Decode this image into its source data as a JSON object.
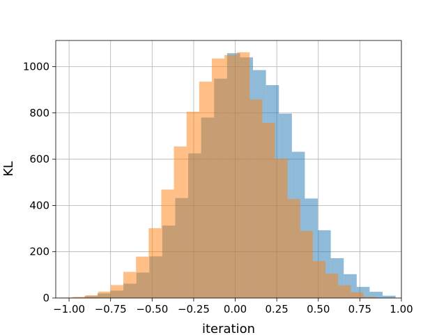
{
  "chart_data": {
    "type": "bar",
    "histogram": true,
    "xlabel": "iteration",
    "ylabel": "KL",
    "xlim": [
      -1.08,
      1.0
    ],
    "ylim": [
      0,
      1113
    ],
    "x_ticks": [
      -1.0,
      -0.75,
      -0.5,
      -0.25,
      0.0,
      0.25,
      0.5,
      0.75,
      1.0
    ],
    "x_tick_labels": [
      "−1.00",
      "−0.75",
      "−0.50",
      "−0.25",
      "0.00",
      "0.25",
      "0.50",
      "0.75",
      "1.00"
    ],
    "y_ticks": [
      0,
      200,
      400,
      600,
      800,
      1000
    ],
    "y_tick_labels": [
      "0",
      "200",
      "400",
      "600",
      "800",
      "1000"
    ],
    "grid": true,
    "series": [
      {
        "color": "#1f77b4",
        "opacity": 0.5,
        "bin_edges": [
          -0.985,
          -0.907,
          -0.829,
          -0.751,
          -0.673,
          -0.595,
          -0.517,
          -0.439,
          -0.361,
          -0.283,
          -0.205,
          -0.127,
          -0.049,
          0.029,
          0.107,
          0.185,
          0.263,
          0.341,
          0.419,
          0.497,
          0.575,
          0.653,
          0.731,
          0.809,
          0.887,
          0.965
        ],
        "counts": [
          2,
          8,
          20,
          32,
          62,
          110,
          180,
          313,
          432,
          625,
          780,
          948,
          1058,
          1040,
          985,
          920,
          797,
          632,
          430,
          293,
          172,
          103,
          48,
          27,
          10
        ]
      },
      {
        "color": "#ff7f0e",
        "opacity": 0.5,
        "bin_edges": [
          -1.053,
          -0.977,
          -0.901,
          -0.825,
          -0.749,
          -0.673,
          -0.597,
          -0.521,
          -0.445,
          -0.369,
          -0.293,
          -0.217,
          -0.141,
          -0.065,
          0.011,
          0.087,
          0.163,
          0.239,
          0.315,
          0.391,
          0.467,
          0.543,
          0.619,
          0.695,
          0.771,
          0.847
        ],
        "counts": [
          2,
          5,
          12,
          28,
          56,
          113,
          179,
          302,
          469,
          655,
          805,
          935,
          1035,
          1050,
          1062,
          858,
          757,
          602,
          428,
          290,
          160,
          105,
          55,
          25,
          5
        ]
      }
    ]
  }
}
